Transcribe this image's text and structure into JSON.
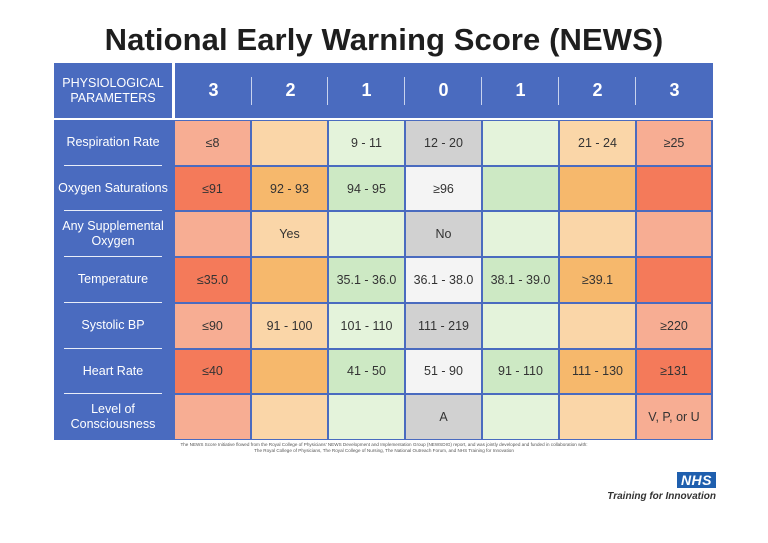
{
  "title": "National Early Warning Score (NEWS)",
  "table": {
    "header_label": "PHYSIOLOGICAL PARAMETERS",
    "scores": [
      "3",
      "2",
      "1",
      "0",
      "1",
      "2",
      "3"
    ],
    "colors": {
      "header_blue": "#4a6bbf",
      "score3_light": "#f7ad93",
      "score3_strong": "#f47a5a",
      "score2_light": "#fad6a8",
      "score2_strong": "#f6b86c",
      "score1_light": "#e4f3db",
      "score1_strong": "#cde9c4",
      "score0_grey": "#d1d1d1",
      "score0_white": "#f4f4f4"
    },
    "rows": [
      {
        "parameter": "Respiration Rate",
        "cells": [
          "≤8",
          "",
          "9 - 11",
          "12 - 20",
          "",
          "21 - 24",
          "≥25"
        ]
      },
      {
        "parameter": "Oxygen Saturations",
        "cells": [
          "≤91",
          "92 - 93",
          "94 - 95",
          "≥96",
          "",
          "",
          ""
        ]
      },
      {
        "parameter": "Any Supplemental Oxygen",
        "cells": [
          "",
          "Yes",
          "",
          "No",
          "",
          "",
          ""
        ]
      },
      {
        "parameter": "Temperature",
        "cells": [
          "≤35.0",
          "",
          "35.1 - 36.0",
          "36.1 - 38.0",
          "38.1 - 39.0",
          "≥39.1",
          ""
        ]
      },
      {
        "parameter": "Systolic BP",
        "cells": [
          "≤90",
          "91 - 100",
          "101 - 110",
          "111 - 219",
          "",
          "",
          "≥220"
        ]
      },
      {
        "parameter": "Heart Rate",
        "cells": [
          "≤40",
          "",
          "41 - 50",
          "51 - 90",
          "91 - 110",
          "111 - 130",
          "≥131"
        ]
      },
      {
        "parameter": "Level of Consciousness",
        "cells": [
          "",
          "",
          "",
          "A",
          "",
          "",
          "V, P, or U"
        ]
      }
    ]
  },
  "footnote": {
    "line1": "The NEWS Score Initiative flowed from the Royal College of Physicians' NEWS Development and Implementation Group (NEWSDIG) report, and was jointly developed and funded in collaboration with:",
    "line2": "The Royal College of Physicians, The Royal College of Nursing, The National Outreach Forum, and NHS Training for Innovation"
  },
  "logo": {
    "nhs": "NHS",
    "tagline": "Training for Innovation"
  }
}
